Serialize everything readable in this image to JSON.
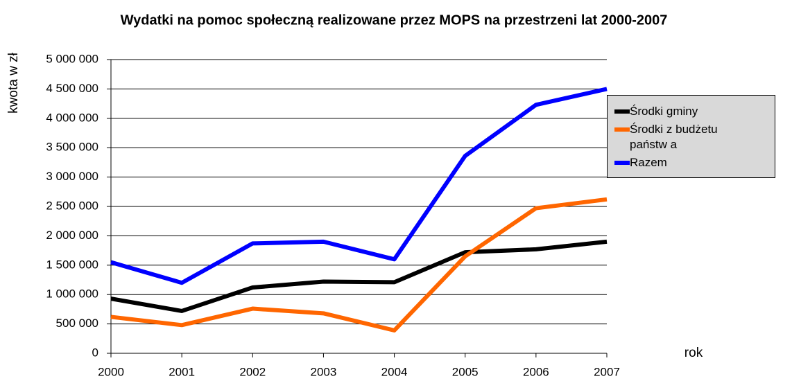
{
  "chart_data": {
    "type": "line",
    "title": "Wydatki na pomoc społeczną realizowane przez MOPS na przestrzeni lat 2000-2007",
    "y_label": "kwota w  zł",
    "x_label": "rok",
    "categories": [
      "2000",
      "2001",
      "2002",
      "2003",
      "2004",
      "2005",
      "2006",
      "2007"
    ],
    "series": [
      {
        "name": "Środki gminy",
        "color": "#000000",
        "values": [
          930000,
          720000,
          1120000,
          1220000,
          1210000,
          1720000,
          1770000,
          1900000
        ]
      },
      {
        "name": "Środki z budżetu państw a",
        "color": "#ff6600",
        "values": [
          620000,
          480000,
          760000,
          680000,
          390000,
          1650000,
          2470000,
          2620000
        ]
      },
      {
        "name": "Razem",
        "color": "#0000ff",
        "values": [
          1550000,
          1200000,
          1870000,
          1900000,
          1600000,
          3360000,
          4230000,
          4500000
        ]
      }
    ],
    "ylim": [
      0,
      5000000
    ],
    "yticks": [
      0,
      {
        "value": 500000,
        "label": "500 000"
      },
      {
        "value": 1000000,
        "label": "1 000 000"
      },
      {
        "value": 1500000,
        "label": "1 500 000"
      },
      {
        "value": 2000000,
        "label": "2 000 000"
      },
      {
        "value": 2500000,
        "label": "2 500 000"
      },
      {
        "value": 3000000,
        "label": "3 000 000"
      },
      {
        "value": 3500000,
        "label": "3 500 000"
      },
      {
        "value": 4000000,
        "label": "4 000 000"
      },
      {
        "value": 4500000,
        "label": "4 500 000"
      },
      {
        "value": 5000000,
        "label": "5 000 000"
      }
    ],
    "grid": true
  }
}
